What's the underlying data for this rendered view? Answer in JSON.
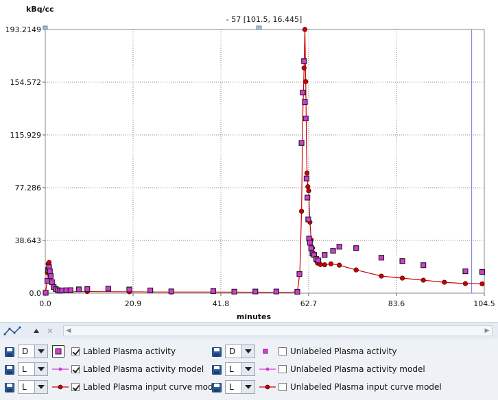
{
  "chart_data": {
    "type": "line",
    "ylabel": "kBq/cc",
    "xlabel": "minutes",
    "xlim": [
      0.0,
      104.5
    ],
    "ylim": [
      0.0,
      193.2149
    ],
    "x_ticks": [
      "0.0",
      "20.9",
      "41.8",
      "62.7",
      "83.6",
      "104.5"
    ],
    "y_ticks": [
      "0.0",
      "38.643",
      "77.286",
      "115.929",
      "154.572",
      "193.2149"
    ],
    "x_tick_values": [
      0.0,
      20.9,
      41.8,
      62.7,
      83.6,
      104.5
    ],
    "y_tick_values": [
      0.0,
      38.643,
      77.286,
      115.929,
      154.572,
      193.2149
    ],
    "grid": true,
    "cursor_label": "- 57 [101.5, 16.445]",
    "cursor_x": 101.5,
    "colors": {
      "labeled": "#d63ad6",
      "model": "#cc0000",
      "edge": "#222222"
    },
    "series": [
      {
        "name": "Labled Plasma activity",
        "style": "square-outlined",
        "x": [
          0.1,
          0.5,
          0.7,
          0.9,
          1.1,
          1.3,
          1.6,
          2.0,
          2.5,
          3.0,
          3.5,
          4.0,
          5.0,
          6.0,
          8.0,
          10.0,
          15.0,
          20.0,
          25.0,
          30.0,
          40.0,
          45.0,
          50.0,
          55.0,
          60.0,
          60.5,
          61.0,
          61.3,
          61.6,
          61.8,
          62.0,
          62.2,
          62.4,
          62.6,
          62.8,
          63.0,
          63.3,
          63.6,
          64.0,
          64.5,
          65.0,
          66.5,
          68.5,
          70.0,
          74.0,
          80.0,
          85.0,
          90.0,
          100.0,
          104.0
        ],
        "y": [
          0.3,
          9.0,
          17.0,
          19.0,
          16.0,
          12.5,
          8.0,
          4.5,
          3.0,
          2.2,
          1.8,
          2.0,
          2.1,
          2.2,
          2.8,
          3.0,
          3.3,
          2.7,
          2.0,
          1.3,
          1.5,
          1.1,
          1.2,
          1.2,
          1.0,
          14.0,
          110.0,
          147.0,
          170.0,
          140.0,
          128.0,
          84.0,
          70.0,
          54.0,
          40.0,
          37.0,
          33.0,
          29.0,
          28.0,
          25.0,
          24.0,
          28.0,
          31.0,
          34.0,
          33.0,
          26.0,
          23.5,
          20.5,
          16.0,
          15.5
        ]
      },
      {
        "name": "Labled Plasma activity model",
        "style": "line-dot",
        "x": [],
        "y": []
      },
      {
        "name": "Labled Plasma input curve model",
        "style": "line-circle",
        "x": [
          0.0,
          0.3,
          0.5,
          0.7,
          0.9,
          1.1,
          1.4,
          1.8,
          2.3,
          3.0,
          4.0,
          6.0,
          10.0,
          15.0,
          20.0,
          25.0,
          30.0,
          40.0,
          50.0,
          58.0,
          60.0,
          60.6,
          61.0,
          61.3,
          61.6,
          61.8,
          62.0,
          62.2,
          62.3,
          62.5,
          62.7,
          63.0,
          63.3,
          63.6,
          64.0,
          64.4,
          64.8,
          65.5,
          66.5,
          68.0,
          70.0,
          74.0,
          80.0,
          85.0,
          90.0,
          95.0,
          100.0,
          104.0
        ],
        "y": [
          0.2,
          5.0,
          15.0,
          21.5,
          22.5,
          17.0,
          10.0,
          5.0,
          2.5,
          1.5,
          1.0,
          1.0,
          1.2,
          1.1,
          1.0,
          0.9,
          0.8,
          0.8,
          0.7,
          0.6,
          1.0,
          15.0,
          60.0,
          130.0,
          165.0,
          193.2,
          155.0,
          108.0,
          88.0,
          78.0,
          75.0,
          52.0,
          39.0,
          33.0,
          28.0,
          24.0,
          22.0,
          21.0,
          20.8,
          21.5,
          20.5,
          17.0,
          12.5,
          11.0,
          9.5,
          8.0,
          7.0,
          6.8
        ]
      }
    ]
  },
  "toolbar": {
    "icons": [
      "curve-style-icon",
      "up-arrow-icon",
      "close-icon"
    ],
    "scroll_left_icon": "◀",
    "scroll_right_icon": "▶"
  },
  "legend": {
    "rows": [
      {
        "combo": "D",
        "symbol": "square",
        "checked": true,
        "label": "Labled Plasma activity"
      },
      {
        "combo": "L",
        "symbol": "line-dot",
        "checked": true,
        "label": "Labled Plasma activity model"
      },
      {
        "combo": "L",
        "symbol": "line-circle",
        "checked": true,
        "label": "Labled Plasma input curve model"
      },
      {
        "combo": "D",
        "symbol": "square-small",
        "checked": false,
        "label": "Unlabeled Plasma activity"
      },
      {
        "combo": "L",
        "symbol": "line-dot",
        "checked": false,
        "label": "Unlabeled Plasma activity model"
      },
      {
        "combo": "L",
        "symbol": "line-circle",
        "checked": false,
        "label": "Unlabeled Plasma input curve model"
      }
    ]
  }
}
